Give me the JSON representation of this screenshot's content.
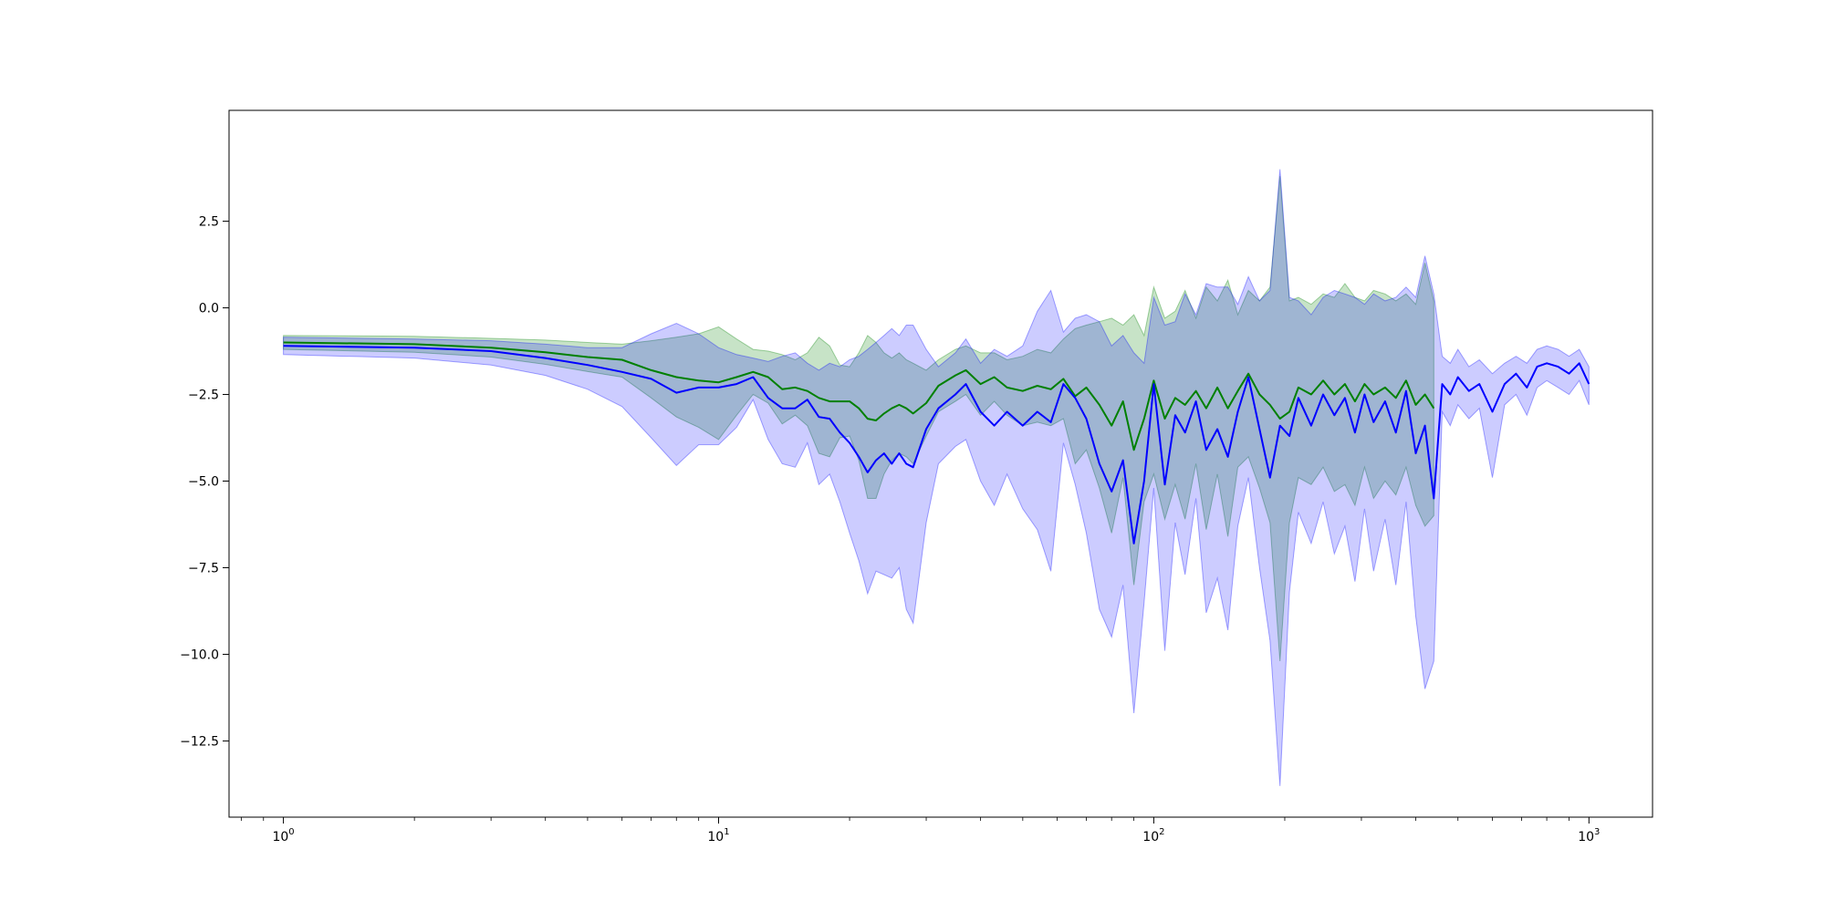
{
  "chart_data": {
    "type": "line",
    "title": "",
    "xlabel": "",
    "ylabel": "",
    "xscale": "log",
    "xlim": [
      0.75,
      1400
    ],
    "ylim": [
      -14.7,
      5.7
    ],
    "grid": false,
    "legend": "none",
    "x_ticks": [
      {
        "value": 1,
        "base": "10",
        "exp": "0"
      },
      {
        "value": 10,
        "base": "10",
        "exp": "1"
      },
      {
        "value": 100,
        "base": "10",
        "exp": "2"
      },
      {
        "value": 1000,
        "base": "10",
        "exp": "3"
      }
    ],
    "y_ticks": [
      {
        "value": 2.5,
        "label": "2.5"
      },
      {
        "value": 0.0,
        "label": "0.0"
      },
      {
        "value": -2.5,
        "label": "−2.5"
      },
      {
        "value": -5.0,
        "label": "−5.0"
      },
      {
        "value": -7.5,
        "label": "−7.5"
      },
      {
        "value": -10.0,
        "label": "−10.0"
      },
      {
        "value": -12.5,
        "label": "−12.5"
      }
    ],
    "series": [
      {
        "color": "#008000",
        "band_color": "#008000",
        "band_opacity": 0.22,
        "points": [
          [
            1,
            -1.0,
            -0.8,
            -1.2
          ],
          [
            2,
            -1.05,
            -0.82,
            -1.28
          ],
          [
            3,
            -1.15,
            -0.88,
            -1.42
          ],
          [
            4,
            -1.28,
            -0.93,
            -1.63
          ],
          [
            5,
            -1.42,
            -1.0,
            -1.84
          ],
          [
            6,
            -1.5,
            -1.05,
            -2.0
          ],
          [
            7,
            -1.8,
            -0.95,
            -2.6
          ],
          [
            8,
            -2.0,
            -0.85,
            -3.15
          ],
          [
            9,
            -2.1,
            -0.75,
            -3.45
          ],
          [
            10,
            -2.15,
            -0.55,
            -3.8
          ],
          [
            11,
            -2.0,
            -0.9,
            -3.1
          ],
          [
            12,
            -1.85,
            -1.2,
            -2.5
          ],
          [
            13,
            -2.0,
            -1.25,
            -2.75
          ],
          [
            14,
            -2.35,
            -1.35,
            -3.35
          ],
          [
            15,
            -2.3,
            -1.5,
            -3.1
          ],
          [
            16,
            -2.4,
            -1.3,
            -3.4
          ],
          [
            17,
            -2.6,
            -0.85,
            -4.2
          ],
          [
            18,
            -2.7,
            -1.1,
            -4.3
          ],
          [
            19,
            -2.7,
            -1.65,
            -3.75
          ],
          [
            20,
            -2.7,
            -1.7,
            -3.7
          ],
          [
            21,
            -2.9,
            -1.3,
            -4.4
          ],
          [
            22,
            -3.2,
            -0.8,
            -5.5
          ],
          [
            23,
            -3.25,
            -1.0,
            -5.5
          ],
          [
            24,
            -3.05,
            -1.3,
            -4.8
          ],
          [
            25,
            -2.9,
            -1.45,
            -4.4
          ],
          [
            26,
            -2.8,
            -1.3,
            -4.2
          ],
          [
            27,
            -2.9,
            -1.5,
            -4.3
          ],
          [
            28,
            -3.05,
            -1.6,
            -4.5
          ],
          [
            30,
            -2.75,
            -1.8,
            -3.7
          ],
          [
            32,
            -2.25,
            -1.5,
            -3.0
          ],
          [
            35,
            -1.95,
            -1.2,
            -2.7
          ],
          [
            37,
            -1.8,
            -1.1,
            -2.5
          ],
          [
            40,
            -2.2,
            -1.3,
            -3.1
          ],
          [
            43,
            -2.0,
            -1.3,
            -2.7
          ],
          [
            46,
            -2.3,
            -1.5,
            -3.1
          ],
          [
            50,
            -2.4,
            -1.4,
            -3.4
          ],
          [
            54,
            -2.25,
            -1.2,
            -3.3
          ],
          [
            58,
            -2.35,
            -1.3,
            -3.4
          ],
          [
            62,
            -2.05,
            -0.9,
            -3.2
          ],
          [
            66,
            -2.55,
            -0.6,
            -4.5
          ],
          [
            70,
            -2.3,
            -0.5,
            -4.1
          ],
          [
            75,
            -2.8,
            -0.4,
            -5.2
          ],
          [
            80,
            -3.4,
            -0.3,
            -6.5
          ],
          [
            85,
            -2.7,
            -0.5,
            -4.9
          ],
          [
            90,
            -4.1,
            -0.2,
            -8.0
          ],
          [
            95,
            -3.2,
            -0.8,
            -5.6
          ],
          [
            100,
            -2.1,
            0.6,
            -4.8
          ],
          [
            106,
            -3.2,
            -0.3,
            -6.1
          ],
          [
            112,
            -2.6,
            -0.1,
            -5.1
          ],
          [
            118,
            -2.8,
            0.5,
            -6.1
          ],
          [
            125,
            -2.4,
            -0.3,
            -4.5
          ],
          [
            132,
            -2.9,
            0.6,
            -6.4
          ],
          [
            140,
            -2.3,
            0.2,
            -4.8
          ],
          [
            148,
            -2.9,
            0.8,
            -6.6
          ],
          [
            156,
            -2.4,
            -0.2,
            -4.6
          ],
          [
            165,
            -1.9,
            0.5,
            -4.3
          ],
          [
            175,
            -2.5,
            0.2,
            -5.2
          ],
          [
            185,
            -2.8,
            0.6,
            -6.2
          ],
          [
            195,
            -3.2,
            3.8,
            -10.2
          ],
          [
            205,
            -3.0,
            0.2,
            -6.2
          ],
          [
            215,
            -2.3,
            0.3,
            -4.9
          ],
          [
            230,
            -2.5,
            0.1,
            -5.1
          ],
          [
            245,
            -2.1,
            0.4,
            -4.6
          ],
          [
            260,
            -2.5,
            0.3,
            -5.3
          ],
          [
            275,
            -2.2,
            0.7,
            -5.1
          ],
          [
            290,
            -2.7,
            0.3,
            -5.7
          ],
          [
            305,
            -2.2,
            0.2,
            -4.6
          ],
          [
            320,
            -2.5,
            0.5,
            -5.5
          ],
          [
            340,
            -2.3,
            0.4,
            -5.0
          ],
          [
            360,
            -2.6,
            0.2,
            -5.4
          ],
          [
            380,
            -2.1,
            0.4,
            -4.6
          ],
          [
            400,
            -2.8,
            0.1,
            -5.7
          ],
          [
            420,
            -2.5,
            1.3,
            -6.3
          ],
          [
            440,
            -2.9,
            0.2,
            -6.0
          ]
        ]
      },
      {
        "color": "#0000ff",
        "band_color": "#0000ff",
        "band_opacity": 0.2,
        "points": [
          [
            1,
            -1.1,
            -0.85,
            -1.35
          ],
          [
            2,
            -1.15,
            -0.9,
            -1.45
          ],
          [
            3,
            -1.25,
            -0.95,
            -1.65
          ],
          [
            4,
            -1.45,
            -1.05,
            -1.95
          ],
          [
            5,
            -1.65,
            -1.15,
            -2.35
          ],
          [
            6,
            -1.85,
            -1.15,
            -2.85
          ],
          [
            7,
            -2.05,
            -0.75,
            -3.75
          ],
          [
            8,
            -2.45,
            -0.45,
            -4.55
          ],
          [
            9,
            -2.3,
            -0.75,
            -3.95
          ],
          [
            10,
            -2.3,
            -1.15,
            -3.95
          ],
          [
            11,
            -2.2,
            -1.35,
            -3.45
          ],
          [
            12,
            -2.0,
            -1.45,
            -2.65
          ],
          [
            13,
            -2.6,
            -1.55,
            -3.8
          ],
          [
            14,
            -2.9,
            -1.4,
            -4.5
          ],
          [
            15,
            -2.9,
            -1.3,
            -4.6
          ],
          [
            16,
            -2.65,
            -1.6,
            -3.9
          ],
          [
            17,
            -3.15,
            -1.8,
            -5.1
          ],
          [
            18,
            -3.2,
            -1.6,
            -4.8
          ],
          [
            19,
            -3.6,
            -1.7,
            -5.6
          ],
          [
            20,
            -3.9,
            -1.5,
            -6.5
          ],
          [
            21,
            -4.3,
            -1.4,
            -7.3
          ],
          [
            22,
            -4.75,
            -1.2,
            -8.25
          ],
          [
            23,
            -4.4,
            -1.0,
            -7.6
          ],
          [
            24,
            -4.2,
            -0.8,
            -7.7
          ],
          [
            25,
            -4.5,
            -0.6,
            -7.8
          ],
          [
            26,
            -4.2,
            -0.8,
            -7.5
          ],
          [
            27,
            -4.5,
            -0.5,
            -8.7
          ],
          [
            28,
            -4.6,
            -0.5,
            -9.1
          ],
          [
            30,
            -3.5,
            -1.2,
            -6.2
          ],
          [
            32,
            -2.9,
            -1.7,
            -4.5
          ],
          [
            35,
            -2.5,
            -1.3,
            -4.0
          ],
          [
            37,
            -2.2,
            -0.9,
            -3.8
          ],
          [
            40,
            -3.0,
            -1.6,
            -5.0
          ],
          [
            43,
            -3.4,
            -1.2,
            -5.7
          ],
          [
            46,
            -3.0,
            -1.4,
            -4.8
          ],
          [
            50,
            -3.4,
            -1.1,
            -5.8
          ],
          [
            54,
            -3.0,
            -0.1,
            -6.4
          ],
          [
            58,
            -3.3,
            0.5,
            -7.6
          ],
          [
            62,
            -2.2,
            -0.7,
            -3.9
          ],
          [
            66,
            -2.6,
            -0.3,
            -5.1
          ],
          [
            70,
            -3.2,
            -0.2,
            -6.5
          ],
          [
            75,
            -4.5,
            -0.4,
            -8.7
          ],
          [
            80,
            -5.3,
            -1.1,
            -9.5
          ],
          [
            85,
            -4.4,
            -0.8,
            -8.0
          ],
          [
            90,
            -6.8,
            -1.3,
            -11.7
          ],
          [
            95,
            -5.0,
            -1.6,
            -8.5
          ],
          [
            100,
            -2.2,
            0.3,
            -5.2
          ],
          [
            106,
            -5.1,
            -0.5,
            -9.9
          ],
          [
            112,
            -3.1,
            -0.4,
            -6.2
          ],
          [
            118,
            -3.6,
            0.4,
            -7.7
          ],
          [
            125,
            -2.7,
            -0.2,
            -5.5
          ],
          [
            132,
            -4.1,
            0.7,
            -8.8
          ],
          [
            140,
            -3.5,
            0.6,
            -7.8
          ],
          [
            148,
            -4.3,
            0.6,
            -9.3
          ],
          [
            156,
            -3.0,
            0.1,
            -6.3
          ],
          [
            165,
            -2.0,
            0.9,
            -4.9
          ],
          [
            175,
            -3.5,
            0.2,
            -7.5
          ],
          [
            185,
            -4.9,
            0.5,
            -9.6
          ],
          [
            195,
            -3.4,
            4.0,
            -13.8
          ],
          [
            205,
            -3.7,
            0.3,
            -8.2
          ],
          [
            215,
            -2.6,
            0.2,
            -5.9
          ],
          [
            230,
            -3.4,
            -0.2,
            -6.8
          ],
          [
            245,
            -2.5,
            0.3,
            -5.6
          ],
          [
            260,
            -3.1,
            0.5,
            -7.1
          ],
          [
            275,
            -2.6,
            0.4,
            -6.3
          ],
          [
            290,
            -3.6,
            0.3,
            -7.9
          ],
          [
            305,
            -2.5,
            0.1,
            -5.8
          ],
          [
            320,
            -3.3,
            0.4,
            -7.6
          ],
          [
            340,
            -2.7,
            0.2,
            -6.1
          ],
          [
            360,
            -3.6,
            0.3,
            -8.0
          ],
          [
            380,
            -2.4,
            0.6,
            -5.6
          ],
          [
            400,
            -4.2,
            0.3,
            -8.9
          ],
          [
            420,
            -3.4,
            1.5,
            -11.0
          ],
          [
            440,
            -5.5,
            0.4,
            -10.2
          ],
          [
            460,
            -2.2,
            -1.4,
            -3.0
          ],
          [
            480,
            -2.5,
            -1.6,
            -3.4
          ],
          [
            500,
            -2.0,
            -1.2,
            -2.8
          ],
          [
            530,
            -2.4,
            -1.7,
            -3.2
          ],
          [
            560,
            -2.2,
            -1.5,
            -2.9
          ],
          [
            600,
            -3.0,
            -1.9,
            -4.9
          ],
          [
            640,
            -2.2,
            -1.6,
            -2.8
          ],
          [
            680,
            -1.9,
            -1.4,
            -2.5
          ],
          [
            720,
            -2.3,
            -1.6,
            -3.1
          ],
          [
            760,
            -1.7,
            -1.2,
            -2.3
          ],
          [
            800,
            -1.6,
            -1.1,
            -2.1
          ],
          [
            850,
            -1.7,
            -1.2,
            -2.3
          ],
          [
            900,
            -1.9,
            -1.4,
            -2.5
          ],
          [
            950,
            -1.6,
            -1.2,
            -2.1
          ],
          [
            1000,
            -2.2,
            -1.7,
            -2.8
          ]
        ]
      }
    ]
  }
}
